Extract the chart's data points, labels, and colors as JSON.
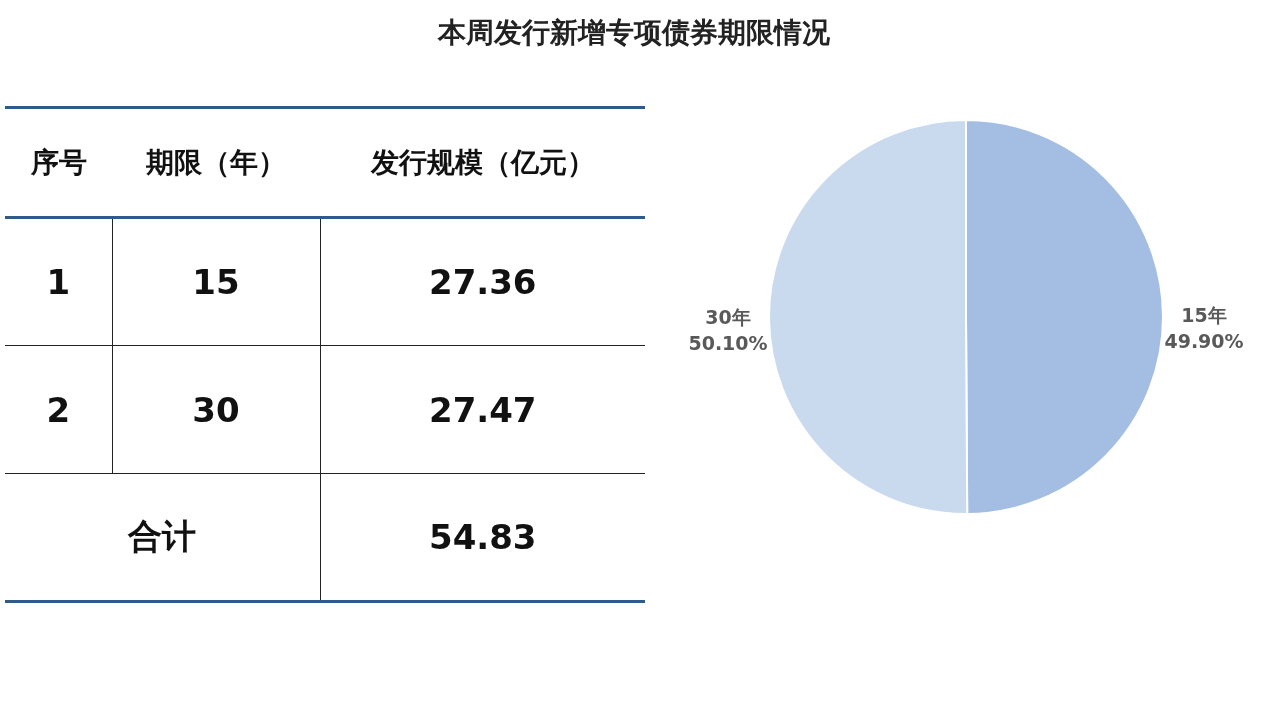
{
  "chart_data": [
    {
      "type": "pie",
      "title": "本周发行新增专项债券期限情况",
      "categories": [
        "15年",
        "30年"
      ],
      "values": [
        49.9,
        50.1
      ],
      "colors": [
        "#a3bde3",
        "#c9d9ee"
      ],
      "value_labels": [
        "49.90%",
        "50.10%"
      ]
    },
    {
      "type": "other",
      "annotations": [
        "序号",
        "期限（年）",
        "发行规模（亿元）",
        "1",
        "15",
        "27.36",
        "2",
        "30",
        "27.47",
        "合计",
        "54.83"
      ]
    }
  ]
}
